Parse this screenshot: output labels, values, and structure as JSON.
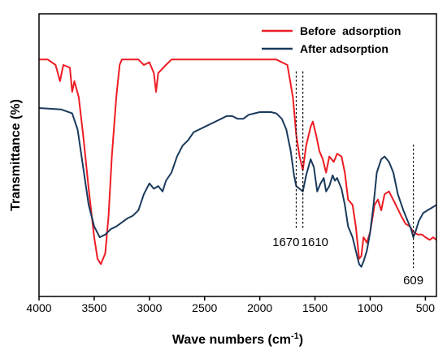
{
  "chart_data": {
    "type": "line",
    "xlabel": "Wave numbers (cm",
    "xlabel_sup": "-1",
    "xlabel_tail": ")",
    "ylabel": "Transmittance (%)",
    "xlim": [
      4000,
      400
    ],
    "x_ticks": [
      4000,
      3500,
      3000,
      2500,
      2000,
      1500,
      1000,
      500
    ],
    "x_reversed": true,
    "y_ticks_shown": false,
    "grid": false,
    "legend_position": "top-right",
    "series": [
      {
        "name": "Before  adsorption",
        "color": "#ee1c24",
        "points": [
          [
            4000,
            8.8
          ],
          [
            3920,
            8.8
          ],
          [
            3850,
            8.6
          ],
          [
            3810,
            8.0
          ],
          [
            3780,
            8.6
          ],
          [
            3720,
            8.5
          ],
          [
            3700,
            7.6
          ],
          [
            3680,
            8.0
          ],
          [
            3640,
            7.4
          ],
          [
            3600,
            6.0
          ],
          [
            3550,
            4.0
          ],
          [
            3500,
            2.2
          ],
          [
            3470,
            1.4
          ],
          [
            3440,
            1.2
          ],
          [
            3400,
            1.6
          ],
          [
            3370,
            3.0
          ],
          [
            3340,
            5.2
          ],
          [
            3300,
            7.4
          ],
          [
            3270,
            8.6
          ],
          [
            3250,
            8.8
          ],
          [
            3100,
            8.8
          ],
          [
            3050,
            8.6
          ],
          [
            3000,
            8.7
          ],
          [
            2960,
            8.3
          ],
          [
            2940,
            7.6
          ],
          [
            2920,
            8.3
          ],
          [
            2850,
            8.6
          ],
          [
            2800,
            8.8
          ],
          [
            2000,
            8.8
          ],
          [
            1850,
            8.8
          ],
          [
            1750,
            8.6
          ],
          [
            1700,
            7.4
          ],
          [
            1670,
            6.0
          ],
          [
            1640,
            5.2
          ],
          [
            1610,
            4.7
          ],
          [
            1580,
            5.6
          ],
          [
            1540,
            6.3
          ],
          [
            1520,
            6.5
          ],
          [
            1490,
            6.0
          ],
          [
            1460,
            5.4
          ],
          [
            1430,
            5.1
          ],
          [
            1400,
            4.6
          ],
          [
            1370,
            5.2
          ],
          [
            1330,
            5.0
          ],
          [
            1300,
            5.3
          ],
          [
            1260,
            5.2
          ],
          [
            1230,
            4.6
          ],
          [
            1200,
            3.6
          ],
          [
            1160,
            3.4
          ],
          [
            1130,
            2.6
          ],
          [
            1100,
            1.4
          ],
          [
            1080,
            1.5
          ],
          [
            1060,
            2.2
          ],
          [
            1030,
            2.0
          ],
          [
            1000,
            2.4
          ],
          [
            960,
            3.4
          ],
          [
            930,
            3.6
          ],
          [
            900,
            3.2
          ],
          [
            870,
            3.8
          ],
          [
            830,
            3.9
          ],
          [
            780,
            3.5
          ],
          [
            720,
            3.0
          ],
          [
            680,
            2.7
          ],
          [
            640,
            2.6
          ],
          [
            609,
            2.4
          ],
          [
            570,
            2.3
          ],
          [
            530,
            2.3
          ],
          [
            500,
            2.2
          ],
          [
            460,
            2.1
          ],
          [
            430,
            2.2
          ],
          [
            400,
            2.1
          ]
        ]
      },
      {
        "name": "After adsorption",
        "color": "#1a3a5c",
        "points": [
          [
            4000,
            7.0
          ],
          [
            3800,
            6.95
          ],
          [
            3700,
            6.8
          ],
          [
            3650,
            6.2
          ],
          [
            3600,
            4.8
          ],
          [
            3550,
            3.4
          ],
          [
            3500,
            2.6
          ],
          [
            3450,
            2.2
          ],
          [
            3400,
            2.3
          ],
          [
            3350,
            2.5
          ],
          [
            3300,
            2.6
          ],
          [
            3200,
            2.9
          ],
          [
            3150,
            3.0
          ],
          [
            3100,
            3.2
          ],
          [
            3050,
            3.8
          ],
          [
            3000,
            4.2
          ],
          [
            2960,
            4.0
          ],
          [
            2920,
            4.1
          ],
          [
            2880,
            3.9
          ],
          [
            2850,
            4.3
          ],
          [
            2800,
            4.6
          ],
          [
            2750,
            5.2
          ],
          [
            2700,
            5.6
          ],
          [
            2650,
            5.8
          ],
          [
            2600,
            6.1
          ],
          [
            2550,
            6.2
          ],
          [
            2500,
            6.3
          ],
          [
            2450,
            6.4
          ],
          [
            2400,
            6.5
          ],
          [
            2350,
            6.6
          ],
          [
            2300,
            6.7
          ],
          [
            2250,
            6.7
          ],
          [
            2200,
            6.6
          ],
          [
            2150,
            6.6
          ],
          [
            2100,
            6.75
          ],
          [
            2050,
            6.8
          ],
          [
            2000,
            6.85
          ],
          [
            1900,
            6.85
          ],
          [
            1850,
            6.8
          ],
          [
            1800,
            6.6
          ],
          [
            1760,
            6.2
          ],
          [
            1720,
            5.4
          ],
          [
            1690,
            4.5
          ],
          [
            1670,
            4.1
          ],
          [
            1640,
            4.0
          ],
          [
            1610,
            3.9
          ],
          [
            1580,
            4.5
          ],
          [
            1540,
            5.1
          ],
          [
            1510,
            4.8
          ],
          [
            1480,
            3.9
          ],
          [
            1450,
            4.2
          ],
          [
            1420,
            4.4
          ],
          [
            1400,
            3.9
          ],
          [
            1370,
            4.1
          ],
          [
            1340,
            4.5
          ],
          [
            1320,
            4.3
          ],
          [
            1300,
            4.4
          ],
          [
            1260,
            4.0
          ],
          [
            1230,
            3.4
          ],
          [
            1200,
            2.6
          ],
          [
            1160,
            2.2
          ],
          [
            1130,
            1.7
          ],
          [
            1100,
            1.2
          ],
          [
            1080,
            1.1
          ],
          [
            1060,
            1.3
          ],
          [
            1030,
            1.7
          ],
          [
            1000,
            2.4
          ],
          [
            970,
            3.4
          ],
          [
            940,
            4.6
          ],
          [
            900,
            5.1
          ],
          [
            870,
            5.2
          ],
          [
            830,
            5.0
          ],
          [
            790,
            4.6
          ],
          [
            750,
            3.8
          ],
          [
            700,
            3.2
          ],
          [
            660,
            2.8
          ],
          [
            630,
            2.5
          ],
          [
            609,
            2.2
          ],
          [
            590,
            2.4
          ],
          [
            560,
            2.8
          ],
          [
            520,
            3.1
          ],
          [
            480,
            3.2
          ],
          [
            440,
            3.3
          ],
          [
            400,
            3.4
          ]
        ]
      }
    ],
    "annotations": [
      {
        "label": "1670",
        "x": 1670,
        "anchor": "end"
      },
      {
        "label": "1610",
        "x": 1610,
        "anchor": "start"
      },
      {
        "label": "609",
        "x": 609,
        "anchor": "middle"
      }
    ]
  }
}
